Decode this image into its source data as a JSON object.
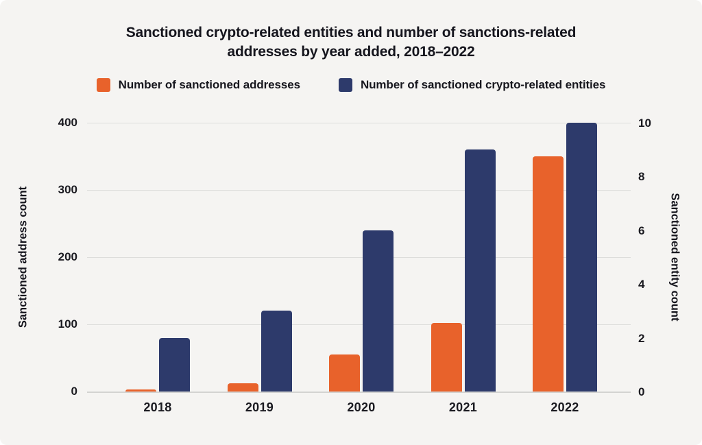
{
  "title": {
    "line1": "Sanctioned crypto-related entities and number of sanctions-related",
    "line2": "addresses by year added, 2018–2022"
  },
  "legend": [
    {
      "label": "Number of sanctioned addresses",
      "color": "#E8622B"
    },
    {
      "label": "Number of sanctioned crypto-related entities",
      "color": "#2D3A6B"
    }
  ],
  "chart_data": {
    "type": "bar",
    "title": "Sanctioned crypto-related entities and number of sanctions-related addresses by year added, 2018–2022",
    "categories": [
      "2018",
      "2019",
      "2020",
      "2021",
      "2022"
    ],
    "series": [
      {
        "name": "Number of sanctioned addresses",
        "axis": "left",
        "color": "#E8622B",
        "values": [
          3,
          12,
          55,
          102,
          350
        ]
      },
      {
        "name": "Number of sanctioned crypto-related entities",
        "axis": "right",
        "color": "#2D3A6B",
        "values": [
          2,
          3,
          6,
          9,
          10
        ]
      }
    ],
    "left_axis": {
      "label": "Sanctioned address count",
      "range": [
        0,
        400
      ],
      "ticks": [
        0,
        100,
        200,
        300,
        400
      ]
    },
    "right_axis": {
      "label": "Sanctioned entity count",
      "range": [
        0,
        10
      ],
      "ticks": [
        0,
        2,
        4,
        6,
        8,
        10
      ]
    },
    "grid": "horizontal gridlines at left-axis ticks",
    "legend_position": "top"
  },
  "colors": {
    "background": "#F5F4F2",
    "gridline": "#DDDDDB",
    "axis_line": "#D3D3D1",
    "text": "#17171E",
    "orange": "#E8622B",
    "navy": "#2D3A6B"
  }
}
